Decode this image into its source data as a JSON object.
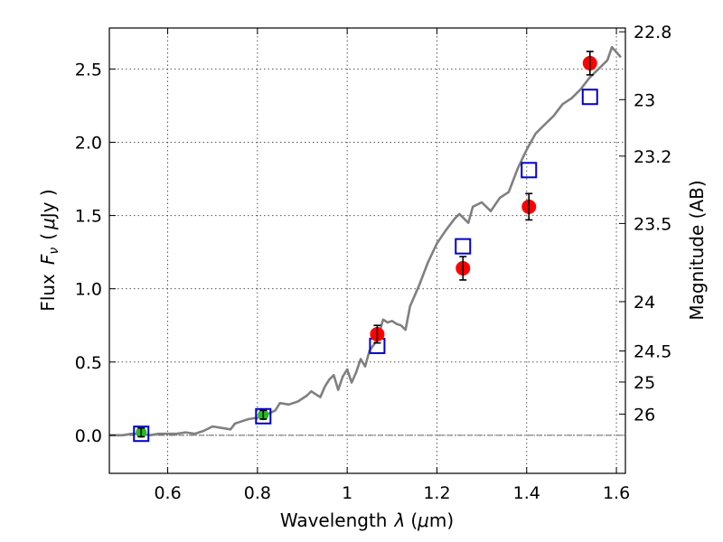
{
  "chart_data": {
    "type": "scatter",
    "xlabel_text": "Wavelength",
    "xlabel_symbol": "λ",
    "xlabel_unit_open": "(",
    "xlabel_unit_mu": "μ",
    "xlabel_unit_close": "m)",
    "ylabel_text": "Flux",
    "ylabel_symbol": "F",
    "ylabel_subscript": "ν",
    "ylabel_unit_open": "(",
    "ylabel_unit_mu": "μ",
    "ylabel_unit_close": "Jy )",
    "y2label": "Magnitude (AB)",
    "xlim": [
      0.47,
      1.62
    ],
    "ylim": [
      -0.26,
      2.78
    ],
    "x_ticks": [
      0.6,
      0.8,
      1.0,
      1.2,
      1.4,
      1.6
    ],
    "x_tick_labels": [
      "0.6",
      "0.8",
      "1",
      "1.2",
      "1.4",
      "1.6"
    ],
    "y_ticks": [
      0.0,
      0.5,
      1.0,
      1.5,
      2.0,
      2.5
    ],
    "y_tick_labels": [
      "0.0",
      "0.5",
      "1.0",
      "1.5",
      "2.0",
      "2.5"
    ],
    "mag_ticks": [
      22.8,
      23,
      23.2,
      23.5,
      24,
      24.5,
      25,
      26
    ],
    "mag_tick_labels": [
      "22.8",
      "23",
      "23.2",
      "23.5",
      "24",
      "24.5",
      "25",
      "26"
    ],
    "zero_line": 0.0,
    "grid": true,
    "colors": {
      "model": "#808080",
      "red_points": "#ff0000",
      "green_points": "#22bb22",
      "open_squares": "#0000cc",
      "error_bars": "#000000",
      "grid": "#555555"
    },
    "series": [
      {
        "name": "model spectrum",
        "kind": "line",
        "x": [
          0.47,
          0.5,
          0.52,
          0.54,
          0.56,
          0.58,
          0.6,
          0.62,
          0.64,
          0.66,
          0.68,
          0.7,
          0.72,
          0.74,
          0.75,
          0.76,
          0.78,
          0.8,
          0.82,
          0.84,
          0.85,
          0.87,
          0.89,
          0.91,
          0.92,
          0.94,
          0.95,
          0.96,
          0.97,
          0.98,
          0.99,
          1.0,
          1.01,
          1.02,
          1.03,
          1.04,
          1.05,
          1.06,
          1.07,
          1.08,
          1.09,
          1.1,
          1.11,
          1.12,
          1.13,
          1.14,
          1.15,
          1.16,
          1.18,
          1.2,
          1.22,
          1.24,
          1.25,
          1.26,
          1.27,
          1.28,
          1.3,
          1.32,
          1.34,
          1.36,
          1.38,
          1.4,
          1.42,
          1.44,
          1.46,
          1.48,
          1.5,
          1.52,
          1.54,
          1.56,
          1.58,
          1.59,
          1.61
        ],
        "y": [
          0.0,
          0.0,
          0.01,
          0.01,
          0.0,
          0.01,
          0.01,
          0.01,
          0.02,
          0.01,
          0.03,
          0.06,
          0.05,
          0.04,
          0.08,
          0.09,
          0.11,
          0.12,
          0.14,
          0.17,
          0.22,
          0.21,
          0.23,
          0.27,
          0.3,
          0.26,
          0.33,
          0.38,
          0.41,
          0.31,
          0.4,
          0.45,
          0.36,
          0.43,
          0.52,
          0.47,
          0.58,
          0.62,
          0.68,
          0.79,
          0.77,
          0.78,
          0.76,
          0.75,
          0.72,
          0.88,
          0.95,
          1.02,
          1.18,
          1.31,
          1.4,
          1.48,
          1.51,
          1.48,
          1.45,
          1.56,
          1.59,
          1.53,
          1.62,
          1.66,
          1.82,
          1.95,
          2.06,
          2.12,
          2.18,
          2.26,
          2.3,
          2.36,
          2.44,
          2.5,
          2.56,
          2.65,
          2.58
        ]
      },
      {
        "name": "red points",
        "kind": "circle",
        "x": [
          1.067,
          1.258,
          1.405,
          1.541
        ],
        "y": [
          0.69,
          1.14,
          1.56,
          2.54
        ],
        "yerr": [
          0.06,
          0.08,
          0.09,
          0.08
        ]
      },
      {
        "name": "green points",
        "kind": "circle",
        "x": [
          0.541,
          0.813
        ],
        "y": [
          0.02,
          0.14
        ],
        "yerr": [
          0.03,
          0.03
        ]
      },
      {
        "name": "open squares",
        "kind": "square",
        "x": [
          0.541,
          0.813,
          1.067,
          1.258,
          1.405,
          1.541
        ],
        "y": [
          0.01,
          0.13,
          0.61,
          1.29,
          1.81,
          2.31
        ]
      }
    ]
  }
}
